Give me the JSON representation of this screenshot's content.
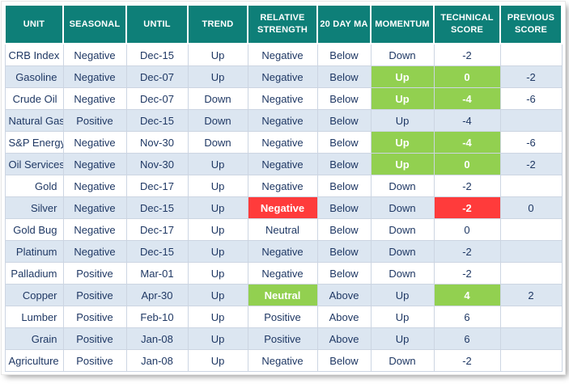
{
  "colors": {
    "header_bg": "#0E7F78",
    "header_text": "#FFFFFF",
    "stripe_row": "#DCE6F1",
    "body_text": "#1F3864",
    "highlight_green": "#92D050",
    "highlight_red": "#FF3B3B"
  },
  "chart_data": {
    "type": "table",
    "columns": [
      "UNIT",
      "SEASONAL",
      "UNTIL",
      "TREND",
      "RELATIVE STRENGTH",
      "20 DAY MA",
      "MOMENTUM",
      "TECHNICAL SCORE",
      "PREVIOUS SCORE"
    ],
    "rows": [
      [
        "CRB Index",
        "Negative",
        "Dec-15",
        "Up",
        "Negative",
        "Below",
        "Down",
        "-2",
        ""
      ],
      [
        "Gasoline",
        "Negative",
        "Dec-07",
        "Up",
        "Negative",
        "Below",
        "Up",
        "0",
        "-2"
      ],
      [
        "Crude Oil",
        "Negative",
        "Dec-07",
        "Down",
        "Negative",
        "Below",
        "Up",
        "-4",
        "-6"
      ],
      [
        "Natural Gas",
        "Positive",
        "Dec-15",
        "Down",
        "Negative",
        "Below",
        "Up",
        "-4",
        ""
      ],
      [
        "S&P Energy",
        "Negative",
        "Nov-30",
        "Down",
        "Negative",
        "Below",
        "Up",
        "-4",
        "-6"
      ],
      [
        "Oil Services",
        "Negative",
        "Nov-30",
        "Up",
        "Negative",
        "Below",
        "Up",
        "0",
        "-2"
      ],
      [
        "Gold",
        "Negative",
        "Dec-17",
        "Up",
        "Negative",
        "Below",
        "Down",
        "-2",
        ""
      ],
      [
        "Silver",
        "Negative",
        "Dec-15",
        "Up",
        "Negative",
        "Below",
        "Down",
        "-2",
        "0"
      ],
      [
        "Gold Bug",
        "Negative",
        "Dec-17",
        "Up",
        "Neutral",
        "Below",
        "Down",
        "0",
        ""
      ],
      [
        "Platinum",
        "Negative",
        "Dec-15",
        "Up",
        "Negative",
        "Below",
        "Down",
        "-2",
        ""
      ],
      [
        "Palladium",
        "Positive",
        "Mar-01",
        "Up",
        "Negative",
        "Below",
        "Down",
        "-2",
        ""
      ],
      [
        "Copper",
        "Positive",
        "Apr-30",
        "Up",
        "Neutral",
        "Above",
        "Up",
        "4",
        "2"
      ],
      [
        "Lumber",
        "Positive",
        "Feb-10",
        "Up",
        "Positive",
        "Above",
        "Up",
        "6",
        ""
      ],
      [
        "Grain",
        "Positive",
        "Jan-08",
        "Up",
        "Positive",
        "Above",
        "Up",
        "6",
        ""
      ],
      [
        "Agriculture",
        "Positive",
        "Jan-08",
        "Up",
        "Negative",
        "Below",
        "Down",
        "-2",
        ""
      ]
    ],
    "highlights": [
      {
        "row": 1,
        "col": 6,
        "color": "green"
      },
      {
        "row": 1,
        "col": 7,
        "color": "green"
      },
      {
        "row": 2,
        "col": 6,
        "color": "green"
      },
      {
        "row": 2,
        "col": 7,
        "color": "green"
      },
      {
        "row": 4,
        "col": 6,
        "color": "green"
      },
      {
        "row": 4,
        "col": 7,
        "color": "green"
      },
      {
        "row": 5,
        "col": 6,
        "color": "green"
      },
      {
        "row": 5,
        "col": 7,
        "color": "green"
      },
      {
        "row": 7,
        "col": 4,
        "color": "red"
      },
      {
        "row": 7,
        "col": 7,
        "color": "red"
      },
      {
        "row": 11,
        "col": 4,
        "color": "green"
      },
      {
        "row": 11,
        "col": 7,
        "color": "green"
      }
    ],
    "title": "",
    "legend": "none",
    "grid": "on"
  }
}
